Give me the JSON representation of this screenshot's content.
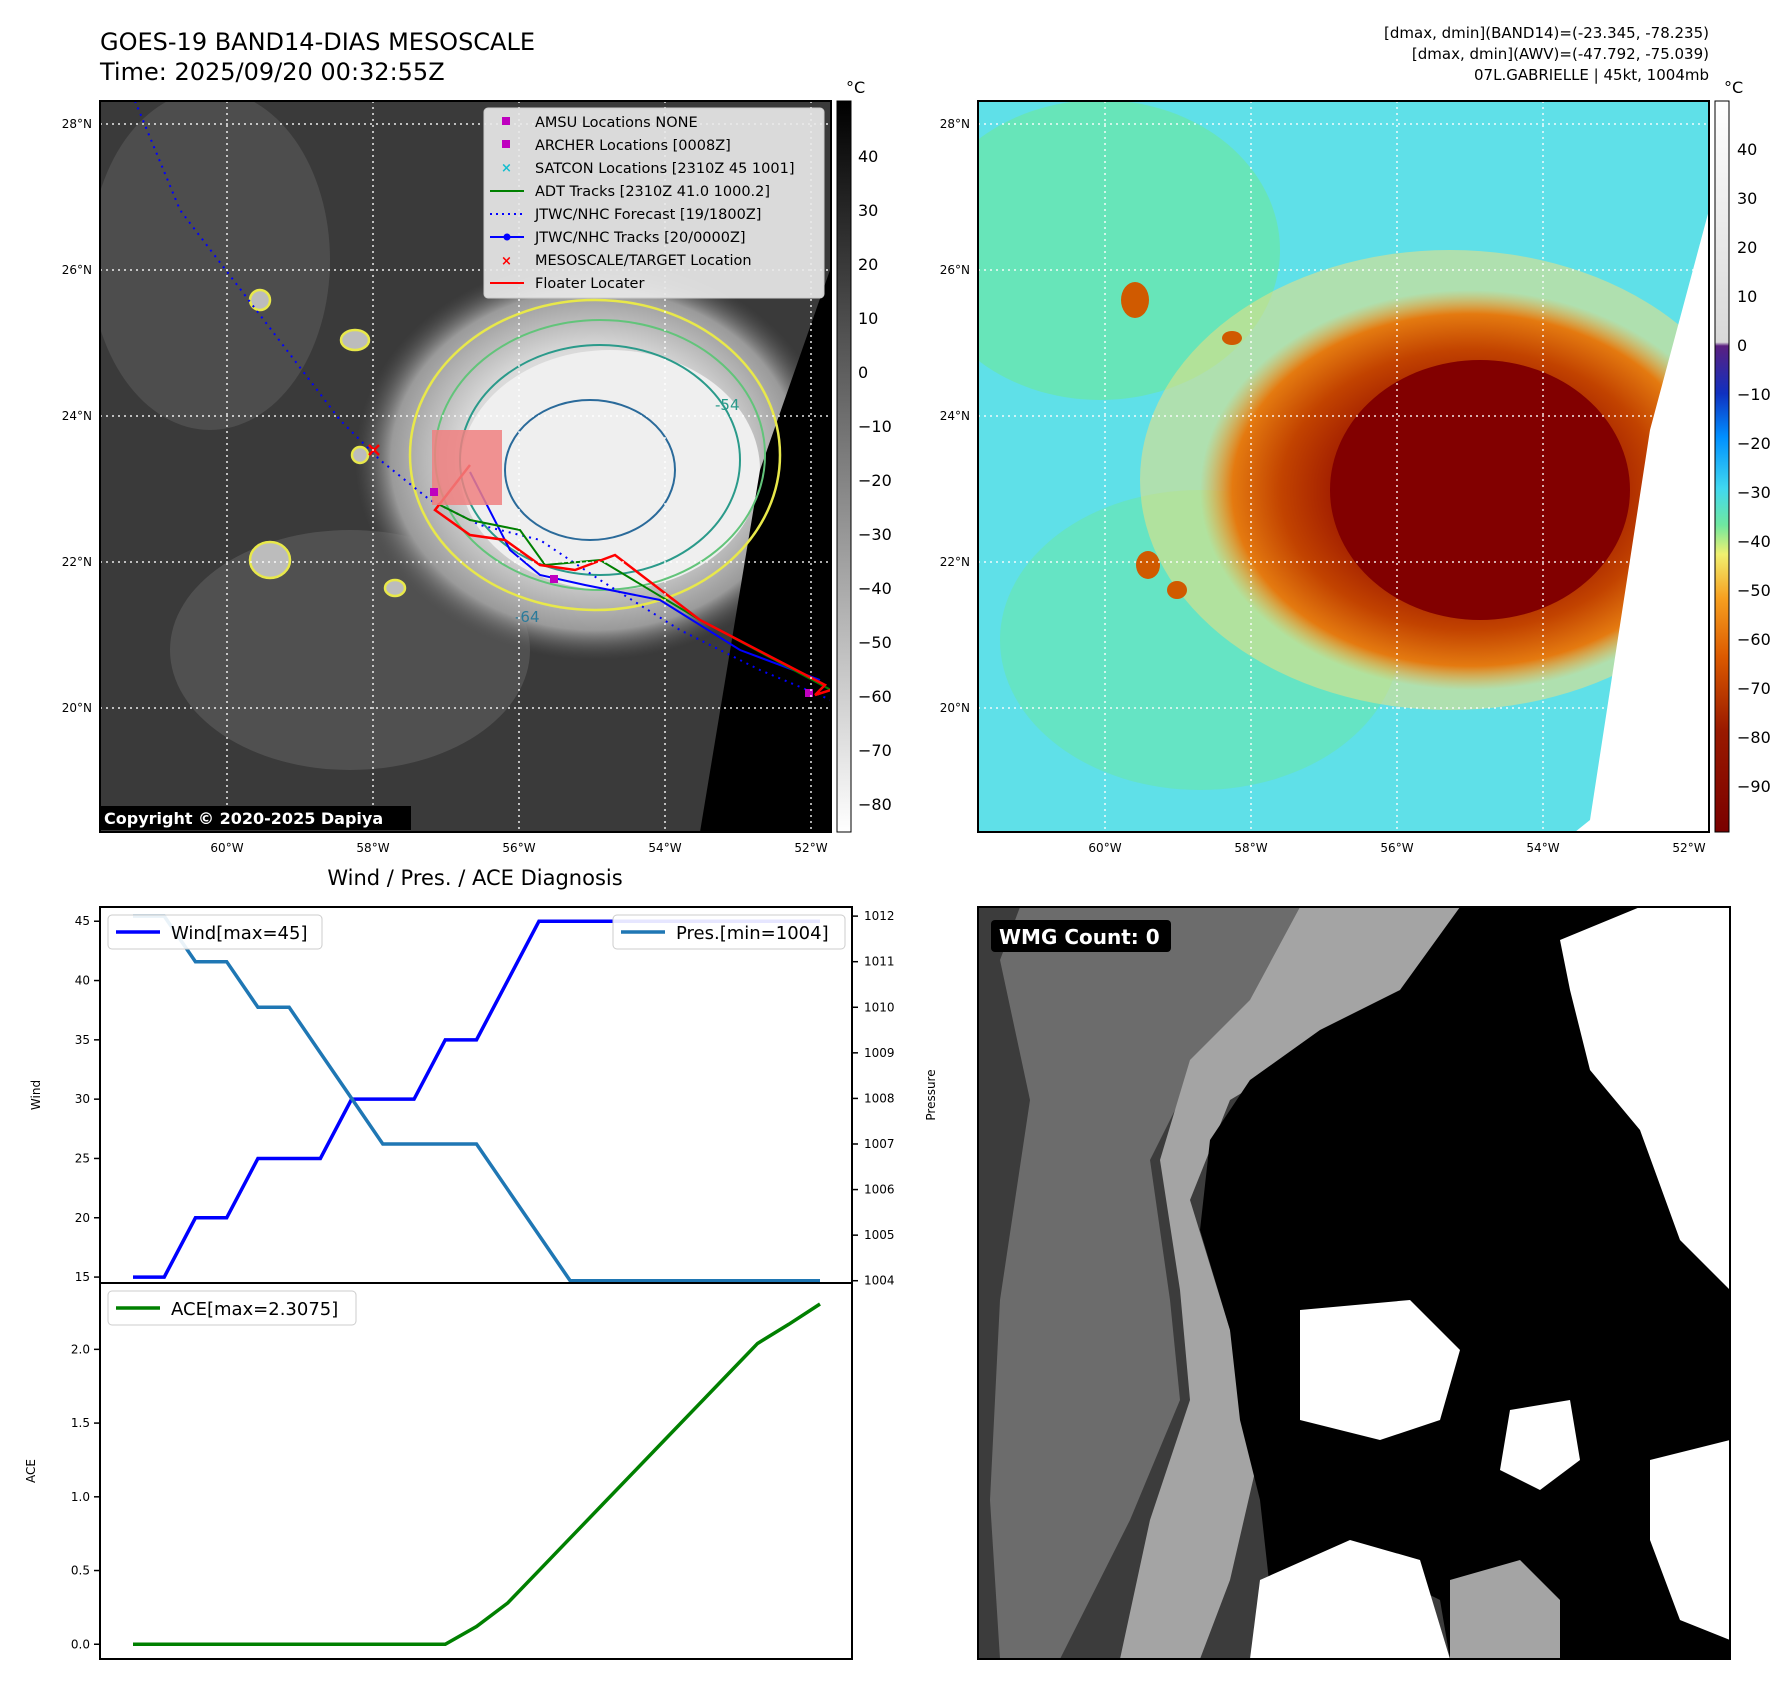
{
  "header": {
    "title_line1": "GOES-19 BAND14-DIAS MESOSCALE",
    "title_line2": "Time: 2025/09/20 00:32:55Z",
    "info_line1": "[dmax, dmin](BAND14)=(-23.345, -78.235)",
    "info_line2": "[dmax, dmin](AWV)=(-47.792, -75.039)",
    "info_line3": "07L.GABRIELLE | 45kt, 1004mb"
  },
  "ir_panel": {
    "copyright": "Copyright © 2020-2025 Dapiya",
    "lat_labels": [
      "28°N",
      "26°N",
      "24°N",
      "22°N",
      "20°N"
    ],
    "lon_labels": [
      "60°W",
      "58°W",
      "56°W",
      "54°W",
      "52°W"
    ],
    "contour_labels": [
      "-54",
      "-64"
    ],
    "colorbar": {
      "unit": "°C",
      "ticks": [
        "40",
        "30",
        "20",
        "10",
        "0",
        "−10",
        "−20",
        "−30",
        "−40",
        "−50",
        "−60",
        "−70",
        "−80"
      ]
    },
    "legend": [
      {
        "label": "AMSU Locations NONE",
        "marker": "square",
        "color": "#bf00bf"
      },
      {
        "label": "ARCHER Locations [0008Z]",
        "marker": "square",
        "color": "#bf00bf"
      },
      {
        "label": "SATCON Locations [2310Z 45 1001]",
        "marker": "x",
        "color": "#17becf"
      },
      {
        "label": "ADT Tracks [2310Z 41.0 1000.2]",
        "marker": "line",
        "color": "#008000"
      },
      {
        "label": "JTWC/NHC Forecast [19/1800Z]",
        "marker": "dotted",
        "color": "#0000ff"
      },
      {
        "label": "JTWC/NHC Tracks [20/0000Z]",
        "marker": "line-dot",
        "color": "#0000ff"
      },
      {
        "label": "MESOSCALE/TARGET Location",
        "marker": "x",
        "color": "#ff0000"
      },
      {
        "label": "Floater Locater",
        "marker": "line",
        "color": "#ff0000"
      }
    ]
  },
  "awv_panel": {
    "lat_labels": [
      "28°N",
      "26°N",
      "24°N",
      "22°N",
      "20°N"
    ],
    "lon_labels": [
      "60°W",
      "58°W",
      "56°W",
      "54°W",
      "52°W"
    ],
    "colorbar": {
      "unit": "°C",
      "ticks": [
        "40",
        "30",
        "20",
        "10",
        "0",
        "−10",
        "−20",
        "−30",
        "−40",
        "−50",
        "−60",
        "−70",
        "−80",
        "−90"
      ]
    }
  },
  "diag_panel": {
    "title": "Wind / Pres. / ACE Diagnosis"
  },
  "wmg_panel": {
    "label": "WMG Count: 0"
  },
  "chart_data": [
    {
      "type": "line",
      "title": "Wind / Pres. / ACE Diagnosis",
      "ylabel": "Wind",
      "y2label": "Pressure",
      "ylim": [
        14.5,
        46.2
      ],
      "y2lim": [
        1003.95,
        1012.2
      ],
      "yticks": [
        "15",
        "20",
        "25",
        "30",
        "35",
        "40",
        "45"
      ],
      "y2ticks": [
        "1004",
        "1005",
        "1006",
        "1007",
        "1008",
        "1009",
        "1010",
        "1011",
        "1012"
      ],
      "x": [
        0,
        1,
        2,
        3,
        4,
        5,
        6,
        7,
        8,
        9,
        10,
        11,
        12,
        13,
        14,
        15,
        16,
        17,
        18,
        19,
        20,
        21,
        22
      ],
      "series": [
        {
          "name": "Wind[max=45]",
          "axis": "left",
          "color": "#0000ff",
          "values": [
            15,
            15,
            20,
            20,
            25,
            25,
            25,
            30,
            30,
            30,
            35,
            35,
            40,
            45,
            45,
            45,
            45,
            45,
            45,
            45,
            45,
            45,
            45
          ]
        },
        {
          "name": "Pres.[min=1004]",
          "axis": "right",
          "color": "#1f77b4",
          "values": [
            1012,
            1012,
            1011,
            1011,
            1010,
            1010,
            1009,
            1008,
            1007,
            1007,
            1007,
            1007,
            1006,
            1005,
            1004,
            1004,
            1004,
            1004,
            1004,
            1004,
            1004,
            1004,
            1004
          ]
        }
      ]
    },
    {
      "type": "line",
      "ylabel": "ACE",
      "ylim": [
        -0.1,
        2.45
      ],
      "yticks": [
        "0.0",
        "0.5",
        "1.0",
        "1.5",
        "2.0"
      ],
      "x": [
        0,
        1,
        2,
        3,
        4,
        5,
        6,
        7,
        8,
        9,
        10,
        11,
        12,
        13,
        14,
        15,
        16,
        17,
        18,
        19,
        20,
        21,
        22
      ],
      "series": [
        {
          "name": "ACE[max=2.3075]",
          "color": "#008000",
          "values": [
            0,
            0,
            0,
            0,
            0,
            0,
            0,
            0,
            0,
            0,
            0,
            0.12,
            0.28,
            0.5,
            0.72,
            0.94,
            1.16,
            1.38,
            1.6,
            1.82,
            2.04,
            2.17,
            2.3075
          ]
        }
      ]
    }
  ]
}
